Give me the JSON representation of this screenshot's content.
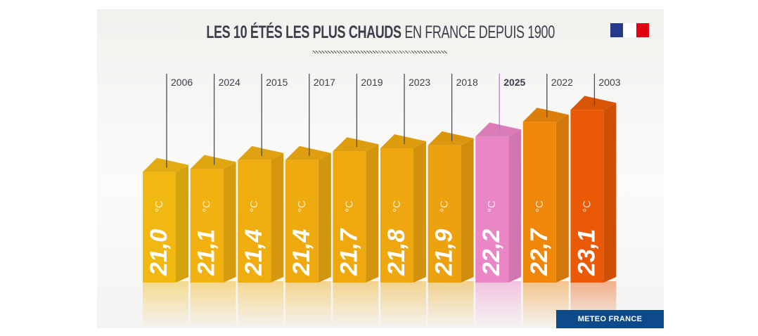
{
  "title": {
    "bold": "LES 10 ÉTÉS LES PLUS CHAUDS",
    "regular": "EN FRANCE DEPUIS 1900"
  },
  "source": "METEO FRANCE",
  "logo": {
    "name": "republique-francaise-logo",
    "colors": [
      "#263a8c",
      "#ffffff",
      "#e1000f"
    ]
  },
  "chart_data": {
    "type": "bar",
    "title": "LES 10 ÉTÉS LES PLUS CHAUDS EN FRANCE DEPUIS 1900",
    "unit": "°C",
    "categories": [
      "2006",
      "2024",
      "2015",
      "2017",
      "2019",
      "2023",
      "2018",
      "2025",
      "2022",
      "2003"
    ],
    "values": [
      21.0,
      21.1,
      21.4,
      21.4,
      21.7,
      21.8,
      21.9,
      22.2,
      22.7,
      23.1
    ],
    "labels": [
      "21,0",
      "21,1",
      "21,4",
      "21,4",
      "21,7",
      "21,8",
      "21,9",
      "22,2",
      "22,7",
      "23,1"
    ],
    "highlight": "2025",
    "colors": [
      "#f2b812",
      "#f1b211",
      "#f0ad10",
      "#efaa10",
      "#efa90f",
      "#eea70f",
      "#eca10e",
      "#ea86c5",
      "#ef870b",
      "#ea5a06"
    ],
    "highlight_label_color": "#9b4fd1",
    "grid": false,
    "legend": "none"
  }
}
